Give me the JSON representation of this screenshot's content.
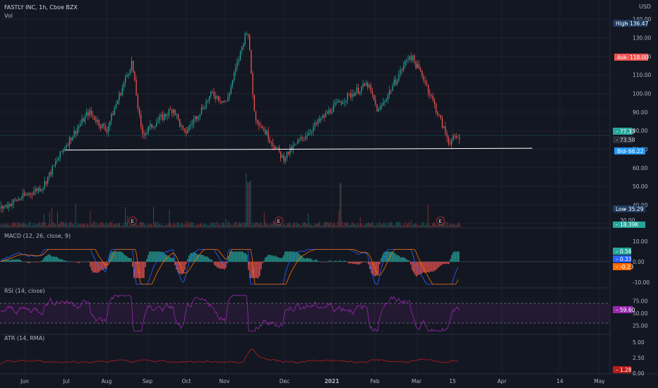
{
  "header": {
    "symbol": "FASTLY INC, 1h, Cboe BZX",
    "vol_label": "Vol",
    "currency": "USD"
  },
  "indicators": {
    "macd": "MACD (12, 26, close, 9)",
    "rsi": "RSI (14, close)",
    "atr": "ATR (14, RMA)"
  },
  "earnings_marker": "E",
  "colors": {
    "background": "#131722",
    "up": "#26a69a",
    "down": "#ef5350",
    "grid": "#1e222d",
    "axis_text": "#b2b5be",
    "macd_line": "#2962ff",
    "signal_line": "#ff6d00",
    "rsi_line": "#9c27b0",
    "atr_line": "#b71c1c",
    "support_line": "#ffffff"
  },
  "badges": {
    "high": {
      "label": "High",
      "value": "136.47",
      "color": "#1e3a5f"
    },
    "ask": {
      "label": "Ask",
      "value": "118.00",
      "color": "#ef5350"
    },
    "last": {
      "value": "77.33",
      "color": "#26a69a"
    },
    "prev": {
      "value": "73.58",
      "color": "#2a2e39"
    },
    "bid": {
      "label": "Bid",
      "value": "66.22",
      "color": "#2196f3"
    },
    "low": {
      "label": "Low",
      "value": "35.29",
      "color": "#1e3a5f"
    },
    "vol": {
      "value": "30.00"
    },
    "vol_k": {
      "value": "18.39K",
      "color": "#26a69a"
    },
    "macd_hist": {
      "value": "0.56",
      "color": "#26a69a"
    },
    "macd": {
      "value": "0.33",
      "color": "#2962ff"
    },
    "signal": {
      "value": "-0.23",
      "color": "#ff6d00"
    },
    "rsi": {
      "value": "59.60",
      "color": "#9c27b0"
    },
    "atr": {
      "value": "1.28",
      "color": "#b71c1c"
    }
  },
  "chart_data": {
    "type": "candlestick",
    "title": "FASTLY INC, 1h, Cboe BZX",
    "price_axis_ticks": [
      "140.00",
      "130.00",
      "120.00",
      "110.00",
      "100.00",
      "90.00",
      "80.00",
      "70.00",
      "60.00",
      "50.00",
      "40.00",
      "30.00"
    ],
    "ylim": [
      28,
      145
    ],
    "x_ticks": [
      "Jun",
      "Jul",
      "Aug",
      "Sep",
      "Oct",
      "Nov",
      "Dec",
      "2021",
      "Feb",
      "Mar",
      "15",
      "Apr",
      "14",
      "May"
    ],
    "price_path": {
      "dates": [
        "Jun",
        "",
        "Jun end",
        "Jul",
        "",
        "Aug",
        "",
        "",
        "Sep",
        "",
        "Oct",
        "Oct mid",
        "",
        "Nov",
        "",
        "Dec",
        "",
        "2021",
        "",
        "Feb",
        "",
        "Feb end",
        "Mar"
      ],
      "values": [
        38,
        50,
        72,
        90,
        80,
        117,
        78,
        92,
        78,
        100,
        95,
        136,
        88,
        65,
        75,
        92,
        98,
        105,
        90,
        121,
        108,
        74,
        77
      ]
    },
    "support_line": {
      "from": [
        "Jun end",
        69.5
      ],
      "to": [
        "Apr",
        70.5
      ]
    },
    "earnings_events": [
      "Aug",
      "Nov",
      "Feb"
    ],
    "macd": {
      "ticks": [
        "10.00",
        "0.00",
        "-10.00"
      ],
      "ylim": [
        -12,
        12
      ]
    },
    "rsi": {
      "ticks": [
        "75.00",
        "50.00",
        "25.00"
      ],
      "ylim": [
        10,
        90
      ],
      "bands": [
        70,
        30
      ]
    },
    "atr": {
      "ticks": [
        "5.00",
        "2.50",
        "0.00"
      ],
      "ylim": [
        0,
        6
      ]
    }
  }
}
